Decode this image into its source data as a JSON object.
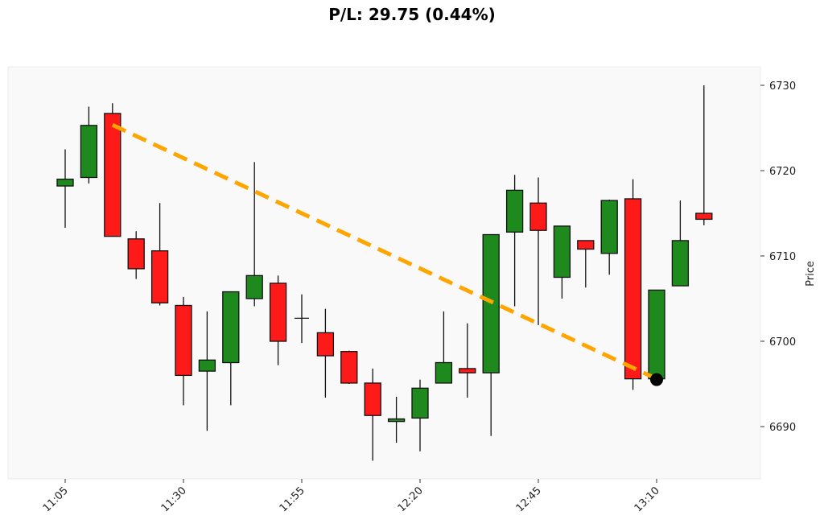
{
  "title": "P/L: 29.75 (0.44%)",
  "colors": {
    "up": "#1e8a1e",
    "down": "#ff1a1a",
    "trade_line": "#ffa500",
    "plot_bg": "#f9f9f9",
    "plot_border": "#ececec",
    "wick": "#111111"
  },
  "chart_data": {
    "type": "candlestick",
    "title": "P/L: 29.75 (0.44%)",
    "xlabel": "",
    "ylabel": "Price",
    "ylim": [
      6684,
      6732.5
    ],
    "y_ticks": [
      6690,
      6700,
      6710,
      6720,
      6730
    ],
    "x_tick_labels": [
      "11:05",
      "11:30",
      "11:55",
      "12:20",
      "12:45",
      "13:10"
    ],
    "x_tick_indices": [
      0,
      5,
      10,
      15,
      20,
      25
    ],
    "y_axis_position": "right",
    "grid": false,
    "candles": [
      {
        "time": "11:05",
        "open": 6718.2,
        "high": 6722.5,
        "low": 6713.3,
        "close": 6719.0
      },
      {
        "time": "11:10",
        "open": 6719.2,
        "high": 6727.5,
        "low": 6718.5,
        "close": 6725.3
      },
      {
        "time": "11:15",
        "open": 6726.7,
        "high": 6727.9,
        "low": 6712.3,
        "close": 6712.3
      },
      {
        "time": "11:20",
        "open": 6712.0,
        "high": 6712.9,
        "low": 6707.3,
        "close": 6708.5
      },
      {
        "time": "11:25",
        "open": 6710.6,
        "high": 6716.2,
        "low": 6704.2,
        "close": 6704.5
      },
      {
        "time": "11:30",
        "open": 6704.2,
        "high": 6705.2,
        "low": 6692.5,
        "close": 6696.0
      },
      {
        "time": "11:35",
        "open": 6696.5,
        "high": 6703.5,
        "low": 6689.5,
        "close": 6697.8
      },
      {
        "time": "11:40",
        "open": 6697.5,
        "high": 6705.8,
        "low": 6692.5,
        "close": 6705.8
      },
      {
        "time": "11:45",
        "open": 6705.0,
        "high": 6721.0,
        "low": 6704.1,
        "close": 6707.7
      },
      {
        "time": "11:50",
        "open": 6706.8,
        "high": 6707.7,
        "low": 6697.2,
        "close": 6700.0
      },
      {
        "time": "11:55",
        "open": 6702.7,
        "high": 6705.5,
        "low": 6699.8,
        "close": 6702.7
      },
      {
        "time": "12:00",
        "open": 6701.0,
        "high": 6703.8,
        "low": 6693.4,
        "close": 6698.3
      },
      {
        "time": "12:05",
        "open": 6698.8,
        "high": 6698.9,
        "low": 6695.0,
        "close": 6695.1
      },
      {
        "time": "12:10",
        "open": 6695.1,
        "high": 6696.8,
        "low": 6686.0,
        "close": 6691.3
      },
      {
        "time": "12:15",
        "open": 6690.6,
        "high": 6693.5,
        "low": 6688.1,
        "close": 6690.9
      },
      {
        "time": "12:20",
        "open": 6691.0,
        "high": 6695.5,
        "low": 6687.1,
        "close": 6694.5
      },
      {
        "time": "12:25",
        "open": 6695.1,
        "high": 6703.5,
        "low": 6695.1,
        "close": 6697.5
      },
      {
        "time": "12:30",
        "open": 6696.8,
        "high": 6702.1,
        "low": 6693.4,
        "close": 6696.3
      },
      {
        "time": "12:35",
        "open": 6696.3,
        "high": 6712.5,
        "low": 6688.9,
        "close": 6712.5
      },
      {
        "time": "12:40",
        "open": 6712.8,
        "high": 6719.5,
        "low": 6704.1,
        "close": 6717.7
      },
      {
        "time": "12:45",
        "open": 6716.2,
        "high": 6719.2,
        "low": 6701.9,
        "close": 6713.0
      },
      {
        "time": "12:50",
        "open": 6707.5,
        "high": 6713.5,
        "low": 6705.0,
        "close": 6713.5
      },
      {
        "time": "12:55",
        "open": 6711.8,
        "high": 6711.8,
        "low": 6706.3,
        "close": 6710.8
      },
      {
        "time": "13:00",
        "open": 6710.3,
        "high": 6716.6,
        "low": 6707.8,
        "close": 6716.5
      },
      {
        "time": "13:05",
        "open": 6716.7,
        "high": 6719.0,
        "low": 6694.3,
        "close": 6695.6
      },
      {
        "time": "13:10",
        "open": 6695.6,
        "high": 6706.0,
        "low": 6695.6,
        "close": 6706.0
      },
      {
        "time": "13:15",
        "open": 6706.5,
        "high": 6716.5,
        "low": 6706.5,
        "close": 6711.8
      },
      {
        "time": "13:20",
        "open": 6715.0,
        "high": 6730.0,
        "low": 6713.6,
        "close": 6714.3
      }
    ],
    "trade": {
      "side": "short",
      "entry": {
        "index": 2,
        "time": "11:15",
        "price": 6725.35,
        "marker": "red-down-triangle"
      },
      "exit": {
        "index": 25,
        "time": "13:10",
        "price": 6695.6,
        "marker": "black-circle"
      },
      "line_style": "dashed",
      "pl": 29.75,
      "pl_pct": 0.44
    }
  }
}
